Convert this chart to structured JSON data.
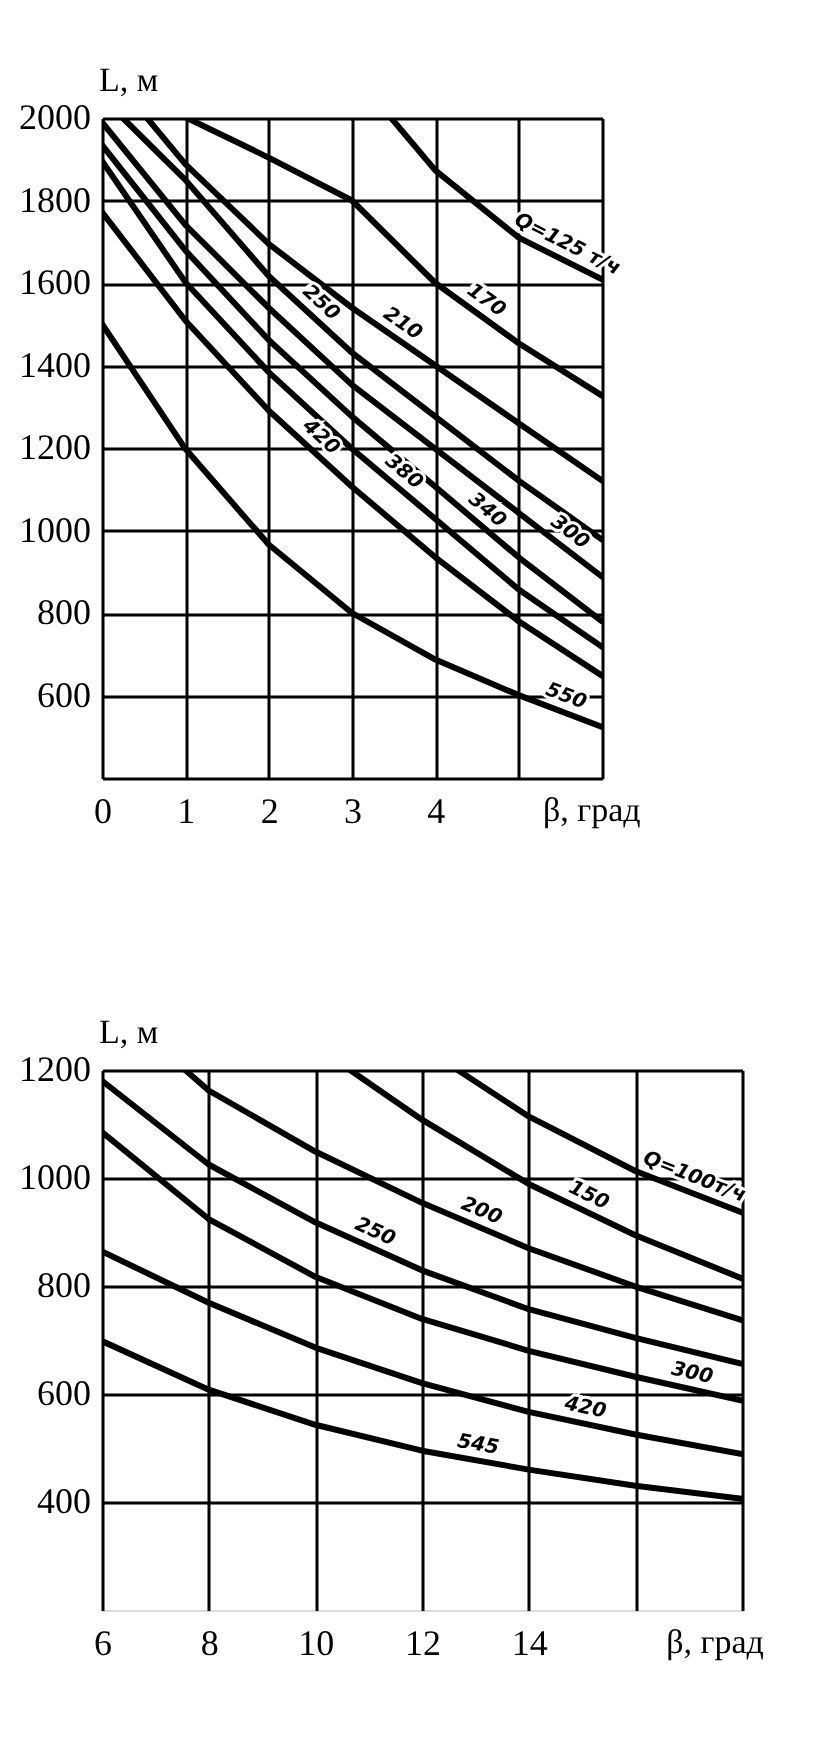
{
  "chart_data": [
    {
      "type": "line",
      "xlabel": "β, град",
      "ylabel": "L, м",
      "xlim": [
        0,
        6
      ],
      "ylim": [
        400,
        2000
      ],
      "xticks": [
        0,
        1,
        2,
        3,
        4,
        {
          "value": 5,
          "label": null
        },
        {
          "value": 6,
          "label": null
        }
      ],
      "yticks": [
        {
          "value": 400,
          "label": null
        },
        600,
        800,
        1000,
        1200,
        1400,
        1600,
        1800,
        2000
      ],
      "grid": true,
      "marker": "none",
      "line_style": "solid",
      "series": [
        {
          "name": "Q=125 т/ч",
          "color": "#000000",
          "x": [
            3.47,
            4,
            5,
            6
          ],
          "values": [
            2000,
            1873,
            1710,
            1609
          ]
        },
        {
          "name": "170",
          "color": "#000000",
          "x": [
            1.02,
            2,
            3,
            4,
            5,
            6
          ],
          "values": [
            2000,
            1904,
            1800,
            1600,
            1454,
            1327
          ]
        },
        {
          "name": "210",
          "color": "#000000",
          "x": [
            0.54,
            1,
            2,
            3,
            4,
            5,
            6
          ],
          "values": [
            2000,
            1888,
            1695,
            1540,
            1400,
            1260,
            1121
          ]
        },
        {
          "name": "250",
          "color": "#000000",
          "x": [
            0.25,
            1,
            2,
            3,
            4,
            5,
            6
          ],
          "values": [
            2000,
            1850,
            1617,
            1431,
            1276,
            1121,
            978
          ]
        },
        {
          "name": "300",
          "color": "#000000",
          "x": [
            0,
            1,
            2,
            3,
            4,
            5,
            6
          ],
          "values": [
            1990,
            1741,
            1540,
            1353,
            1198,
            1043,
            888
          ]
        },
        {
          "name": "340",
          "color": "#000000",
          "x": [
            0,
            1,
            2,
            3,
            4,
            5,
            6
          ],
          "values": [
            1935,
            1679,
            1462,
            1276,
            1106,
            935,
            780
          ]
        },
        {
          "name": "380",
          "color": "#000000",
          "x": [
            0,
            1,
            2,
            3,
            4,
            5,
            6
          ],
          "values": [
            1896,
            1602,
            1384,
            1198,
            1028,
            857,
            718
          ]
        },
        {
          "name": "420",
          "color": "#000000",
          "x": [
            0,
            1,
            2,
            3,
            4,
            5,
            6
          ],
          "values": [
            1772,
            1509,
            1291,
            1106,
            935,
            780,
            648
          ]
        },
        {
          "name": "550",
          "color": "#000000",
          "x": [
            0,
            1,
            2,
            3,
            4,
            5,
            6
          ],
          "values": [
            1501,
            1198,
            966,
            800,
            687,
            601,
            524
          ]
        }
      ]
    },
    {
      "type": "line",
      "xlabel": "β, град",
      "ylabel": "L, м",
      "xlim": [
        6,
        18
      ],
      "ylim": [
        200,
        1200
      ],
      "xticks": [
        6,
        8,
        10,
        12,
        14,
        {
          "value": 16,
          "label": null
        },
        {
          "value": 18,
          "label": null
        }
      ],
      "yticks": [
        400,
        600,
        800,
        1000,
        1200
      ],
      "grid": true,
      "marker": "none",
      "line_style": "solid",
      "series": [
        {
          "name": "Q=100т/ч",
          "color": "#000000",
          "x": [
            12.67,
            14,
            16,
            18
          ],
          "values": [
            1200,
            1114,
            1013,
            936
          ]
        },
        {
          "name": "150",
          "color": "#000000",
          "x": [
            10.65,
            12,
            14,
            16,
            18
          ],
          "values": [
            1200,
            1108,
            989,
            894,
            814
          ]
        },
        {
          "name": "200",
          "color": "#000000",
          "x": [
            7.56,
            8,
            10,
            12,
            14,
            16,
            18
          ],
          "values": [
            1200,
            1162,
            1049,
            954,
            870,
            799,
            737
          ]
        },
        {
          "name": "250",
          "color": "#000000",
          "x": [
            6,
            8,
            10,
            12,
            14,
            16,
            18
          ],
          "values": [
            1180,
            1025,
            918,
            829,
            757,
            704,
            656
          ]
        },
        {
          "name": "300",
          "color": "#000000",
          "x": [
            6,
            8,
            10,
            12,
            14,
            16,
            18
          ],
          "values": [
            1085,
            924,
            817,
            739,
            680,
            632,
            588
          ]
        },
        {
          "name": "420",
          "color": "#000000",
          "x": [
            6,
            8,
            10,
            12,
            14,
            16,
            18
          ],
          "values": [
            864,
            769,
            686,
            620,
            567,
            525,
            489
          ]
        },
        {
          "name": "545",
          "color": "#000000",
          "x": [
            6,
            8,
            10,
            12,
            14,
            16,
            18
          ],
          "values": [
            698,
            608,
            543,
            495,
            460,
            430,
            406
          ]
        }
      ]
    }
  ]
}
